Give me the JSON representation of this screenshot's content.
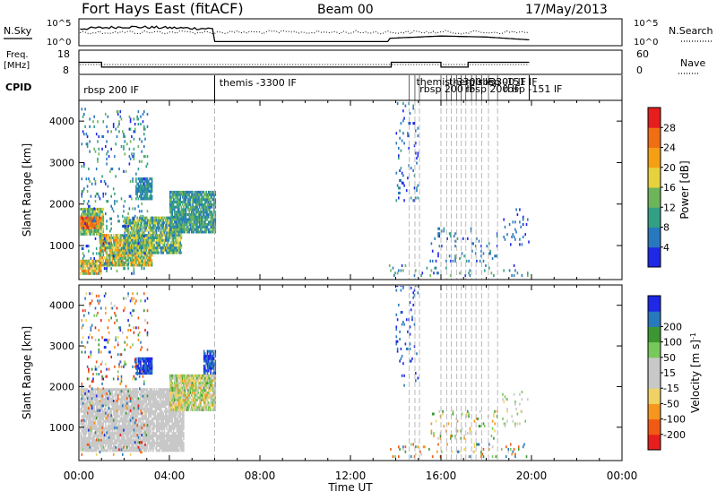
{
  "header": {
    "site": "Fort Hays East (fitACF)",
    "beam": "Beam 00",
    "date": "17/May/2013"
  },
  "top_panels": {
    "nsky_label": "N.Sky",
    "nsearch_label": "N.Search",
    "freq_label_1": "Freq.",
    "freq_label_2": "[MHz]",
    "nave_label": "Nave",
    "cpid_label": "CPID",
    "noise_ticks_left": [
      "10^5",
      "10^0"
    ],
    "noise_ticks_right": [
      "10^5",
      "10^0"
    ],
    "freq_ticks": [
      "18",
      "8"
    ],
    "nave_ticks": [
      "60",
      "0"
    ]
  },
  "cpid": {
    "labels": [
      "rbsp 200 IF",
      "themis -3300 IF",
      "themis -3300 IF",
      "rbsp 200 IF",
      "themis -3300 IF",
      "rbsp 200 IF",
      "rbsp -151 IF",
      "rbsp -151 IF"
    ],
    "label_times": [
      0.05,
      6.05,
      14.75,
      14.9,
      16.2,
      16.9,
      17.5,
      18.6
    ]
  },
  "colors": {
    "power": [
      "#1e28e6",
      "#2878be",
      "#32a084",
      "#6eb45a",
      "#e6d23c",
      "#f5a014",
      "#f06e14",
      "#e61e1e"
    ],
    "velocity": [
      "#e61e1e",
      "#f05a14",
      "#f5961e",
      "#f0d264",
      "#c8c8c8",
      "#c8c8c8",
      "#78c85a",
      "#3c9632",
      "#2878be",
      "#1e28e6"
    ]
  },
  "chart_data": {
    "type": "heatmap",
    "x": {
      "label": "Time UT",
      "range": [
        0,
        24
      ],
      "ticks": [
        "00:00",
        "04:00",
        "08:00",
        "12:00",
        "16:00",
        "20:00",
        "00:00"
      ]
    },
    "y": {
      "label": "Slant Range [km]",
      "range": [
        180,
        4500
      ],
      "ticks": [
        1000,
        2000,
        3000,
        4000
      ]
    },
    "cpid_change_times": [
      6.0,
      14.6,
      14.85,
      15.05,
      16.0,
      16.25,
      16.45,
      16.7,
      16.9,
      17.1,
      17.35,
      17.55,
      17.8,
      18.1,
      18.5
    ],
    "noise_sky_level": [
      [
        0,
        0.7
      ],
      [
        2,
        0.8
      ],
      [
        4,
        0.75
      ],
      [
        6,
        0.7
      ],
      [
        8,
        0.2
      ],
      [
        12,
        0.2
      ],
      [
        14,
        0.3
      ],
      [
        16,
        0.4
      ],
      [
        18,
        0.35
      ],
      [
        20,
        0.2
      ]
    ],
    "frequency_mhz": [
      [
        0,
        13
      ],
      [
        1,
        13
      ],
      [
        1,
        11
      ],
      [
        6,
        11
      ],
      [
        13.8,
        11
      ],
      [
        13.8,
        13
      ],
      [
        16,
        13
      ],
      [
        16,
        11
      ],
      [
        17.2,
        11
      ],
      [
        17.2,
        13
      ],
      [
        19.9,
        13
      ]
    ],
    "panels": [
      {
        "parameter": "Power",
        "colorbar_label": "Power [dB]",
        "colorbar_ticks": [
          4,
          8,
          12,
          16,
          20,
          24,
          28
        ],
        "regions": [
          {
            "t": [
              0.05,
              1.1
            ],
            "r": [
              1250,
              1900
            ],
            "v": [
              8,
              20
            ]
          },
          {
            "t": [
              0.05,
              1.0
            ],
            "r": [
              1400,
              1700
            ],
            "v": [
              22,
              30
            ]
          },
          {
            "t": [
              0.05,
              1.0
            ],
            "r": [
              300,
              650
            ],
            "v": [
              12,
              28
            ]
          },
          {
            "t": [
              0.9,
              3.2
            ],
            "r": [
              500,
              1250
            ],
            "v": [
              10,
              26
            ]
          },
          {
            "t": [
              2.0,
              4.5
            ],
            "r": [
              800,
              1700
            ],
            "v": [
              4,
              20
            ]
          },
          {
            "t": [
              4.0,
              6.0
            ],
            "r": [
              1300,
              2300
            ],
            "v": [
              4,
              16
            ]
          },
          {
            "t": [
              2.5,
              3.2
            ],
            "r": [
              2100,
              2600
            ],
            "v": [
              4,
              12
            ]
          },
          {
            "t": [
              0.1,
              3.0
            ],
            "r": [
              300,
              4300
            ],
            "v": [
              2,
              14
            ],
            "sparse": true
          },
          {
            "t": [
              13.7,
              19.9
            ],
            "r": [
              250,
              500
            ],
            "v": [
              2,
              14
            ],
            "sparse": true
          },
          {
            "t": [
              15.5,
              18.5
            ],
            "r": [
              600,
              1400
            ],
            "v": [
              2,
              10
            ],
            "sparse": true
          },
          {
            "t": [
              18.7,
              19.9
            ],
            "r": [
              1000,
              1900
            ],
            "v": [
              2,
              8
            ],
            "sparse": true
          },
          {
            "t": [
              14.0,
              15.0
            ],
            "r": [
              2000,
              4500
            ],
            "v": [
              2,
              10
            ],
            "sparse": true
          }
        ]
      },
      {
        "parameter": "Velocity",
        "colorbar_label": "Velocity [m s^-1]",
        "colorbar_ticks": [
          -200,
          -100,
          -50,
          -15,
          15,
          50,
          100,
          200
        ],
        "regions": [
          {
            "t": [
              0.05,
              4.6
            ],
            "r": [
              400,
              1950
            ],
            "v": [
              -10,
              10
            ]
          },
          {
            "t": [
              4.0,
              6.0
            ],
            "r": [
              1400,
              2300
            ],
            "v": [
              -60,
              60
            ]
          },
          {
            "t": [
              2.5,
              3.2
            ],
            "r": [
              2300,
              2700
            ],
            "v": [
              150,
              250
            ]
          },
          {
            "t": [
              5.5,
              6.0
            ],
            "r": [
              2300,
              2900
            ],
            "v": [
              100,
              250
            ]
          },
          {
            "t": [
              0.1,
              3.0
            ],
            "r": [
              300,
              4300
            ],
            "v": [
              -250,
              250
            ],
            "sparse": true
          },
          {
            "t": [
              13.7,
              19.9
            ],
            "r": [
              250,
              600
            ],
            "v": [
              -150,
              150
            ],
            "sparse": true
          },
          {
            "t": [
              15.5,
              18.5
            ],
            "r": [
              700,
              1400
            ],
            "v": [
              -100,
              100
            ],
            "sparse": true
          },
          {
            "t": [
              18.7,
              19.9
            ],
            "r": [
              1000,
              1900
            ],
            "v": [
              -40,
              40
            ],
            "sparse": true
          },
          {
            "t": [
              14.0,
              15.0
            ],
            "r": [
              2000,
              4500
            ],
            "v": [
              150,
              250
            ],
            "sparse": true
          }
        ]
      }
    ]
  }
}
